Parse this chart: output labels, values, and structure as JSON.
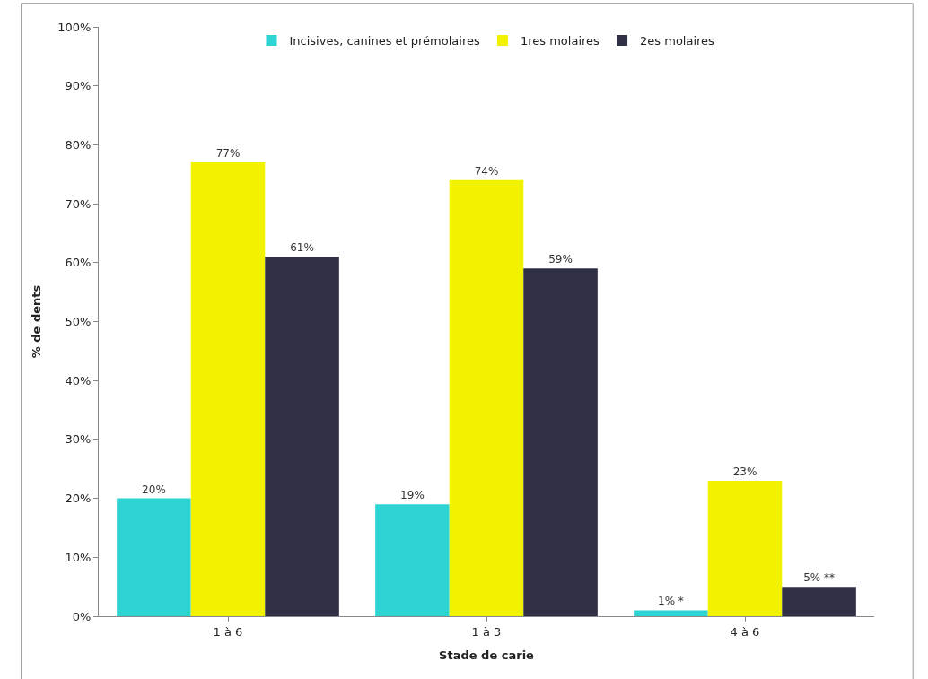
{
  "chart_data": {
    "type": "bar",
    "xlabel": "Stade de carie",
    "ylabel": "% de dents",
    "categories": [
      "1 à 6",
      "1 à 3",
      "4 à 6"
    ],
    "series": [
      {
        "name": "Incisives, canines et prémolaires",
        "color": "#2ed3d3",
        "values": [
          20,
          19,
          1
        ],
        "value_labels": [
          "20%",
          "19%",
          "1% *"
        ]
      },
      {
        "name": "1res molaires",
        "color": "#f2f200",
        "values": [
          77,
          74,
          23
        ],
        "value_labels": [
          "77%",
          "74%",
          "23%"
        ]
      },
      {
        "name": "2es molaires",
        "color": "#2f2f45",
        "values": [
          61,
          59,
          5
        ],
        "value_labels": [
          "61%",
          "59%",
          "5% **"
        ]
      }
    ],
    "ylim": [
      0,
      100
    ],
    "yticks": [
      {
        "value": 0,
        "label": "0%"
      },
      {
        "value": 10,
        "label": "10%"
      },
      {
        "value": 20,
        "label": "20%"
      },
      {
        "value": 30,
        "label": "30%"
      },
      {
        "value": 40,
        "label": "40%"
      },
      {
        "value": 50,
        "label": "50%"
      },
      {
        "value": 60,
        "label": "60%"
      },
      {
        "value": 70,
        "label": "70%"
      },
      {
        "value": 80,
        "label": "80%"
      },
      {
        "value": 90,
        "label": "90%"
      },
      {
        "value": 100,
        "label": "100%"
      }
    ],
    "legend": "top"
  }
}
